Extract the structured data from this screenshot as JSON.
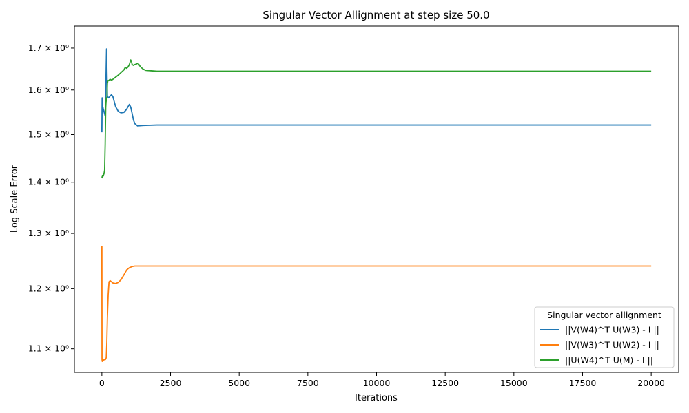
{
  "chart_data": {
    "type": "line",
    "title": "Singular Vector Allignment at step size 50.0",
    "xlabel": "Iterations",
    "ylabel": "Log Scale Error",
    "y_scale": "log",
    "grid": false,
    "xlim": [
      -1000,
      21000
    ],
    "ylim": [
      1.063,
      1.755
    ],
    "x_ticks": [
      0,
      2500,
      5000,
      7500,
      10000,
      12500,
      15000,
      17500,
      20000
    ],
    "y_ticks": [
      {
        "value": 1.1,
        "label": "1.1 × 10⁰"
      },
      {
        "value": 1.2,
        "label": "1.2 × 10⁰"
      },
      {
        "value": 1.3,
        "label": "1.3 × 10⁰"
      },
      {
        "value": 1.4,
        "label": "1.4 × 10⁰"
      },
      {
        "value": 1.5,
        "label": "1.5 × 10⁰"
      },
      {
        "value": 1.6,
        "label": "1.6 × 10⁰"
      },
      {
        "value": 1.7,
        "label": "1.7 × 10⁰"
      }
    ],
    "legend": {
      "title": "Singular vector allignment",
      "position": "lower-right"
    },
    "series": [
      {
        "name": "||V(W4)^T U(W3) - I ||",
        "color": "#1f77b4",
        "x": [
          0,
          10,
          20,
          50,
          100,
          120,
          140,
          170,
          200,
          250,
          300,
          350,
          400,
          500,
          600,
          700,
          800,
          900,
          1000,
          1050,
          1100,
          1150,
          1200,
          1300,
          1500,
          2000,
          3000,
          5000,
          10000,
          15000,
          20000
        ],
        "y": [
          1.505,
          1.582,
          1.565,
          1.557,
          1.546,
          1.541,
          1.596,
          1.698,
          1.585,
          1.582,
          1.586,
          1.589,
          1.585,
          1.562,
          1.551,
          1.548,
          1.549,
          1.556,
          1.567,
          1.561,
          1.547,
          1.532,
          1.524,
          1.519,
          1.52,
          1.521,
          1.521,
          1.521,
          1.521,
          1.521,
          1.521
        ]
      },
      {
        "name": "||V(W3)^T U(W2) - I ||",
        "color": "#ff7f0e",
        "x": [
          0,
          5,
          15,
          30,
          60,
          100,
          130,
          160,
          180,
          200,
          230,
          260,
          300,
          400,
          500,
          600,
          700,
          800,
          900,
          1000,
          1100,
          1200,
          1400,
          1700,
          2000,
          5000,
          10000,
          15000,
          20000
        ],
        "y": [
          1.276,
          1.083,
          1.08,
          1.083,
          1.082,
          1.083,
          1.083,
          1.086,
          1.11,
          1.15,
          1.19,
          1.212,
          1.214,
          1.21,
          1.209,
          1.211,
          1.216,
          1.224,
          1.233,
          1.237,
          1.239,
          1.24,
          1.24,
          1.24,
          1.24,
          1.24,
          1.24,
          1.24,
          1.24
        ]
      },
      {
        "name": "||U(W4)^T U(M) - I ||",
        "color": "#2ca02c",
        "x": [
          0,
          20,
          40,
          60,
          80,
          100,
          120,
          140,
          160,
          180,
          200,
          220,
          250,
          300,
          350,
          400,
          500,
          600,
          700,
          800,
          850,
          900,
          950,
          1000,
          1050,
          1080,
          1100,
          1150,
          1200,
          1250,
          1300,
          1350,
          1400,
          1500,
          1600,
          1800,
          2000,
          2500,
          5000,
          10000,
          15000,
          20000
        ],
        "y": [
          1.408,
          1.414,
          1.412,
          1.415,
          1.418,
          1.425,
          1.48,
          1.56,
          1.582,
          1.575,
          1.615,
          1.622,
          1.622,
          1.625,
          1.623,
          1.625,
          1.63,
          1.635,
          1.641,
          1.647,
          1.653,
          1.651,
          1.654,
          1.66,
          1.671,
          1.667,
          1.66,
          1.658,
          1.66,
          1.661,
          1.663,
          1.66,
          1.655,
          1.649,
          1.646,
          1.645,
          1.644,
          1.644,
          1.644,
          1.644,
          1.644,
          1.644
        ]
      }
    ]
  }
}
